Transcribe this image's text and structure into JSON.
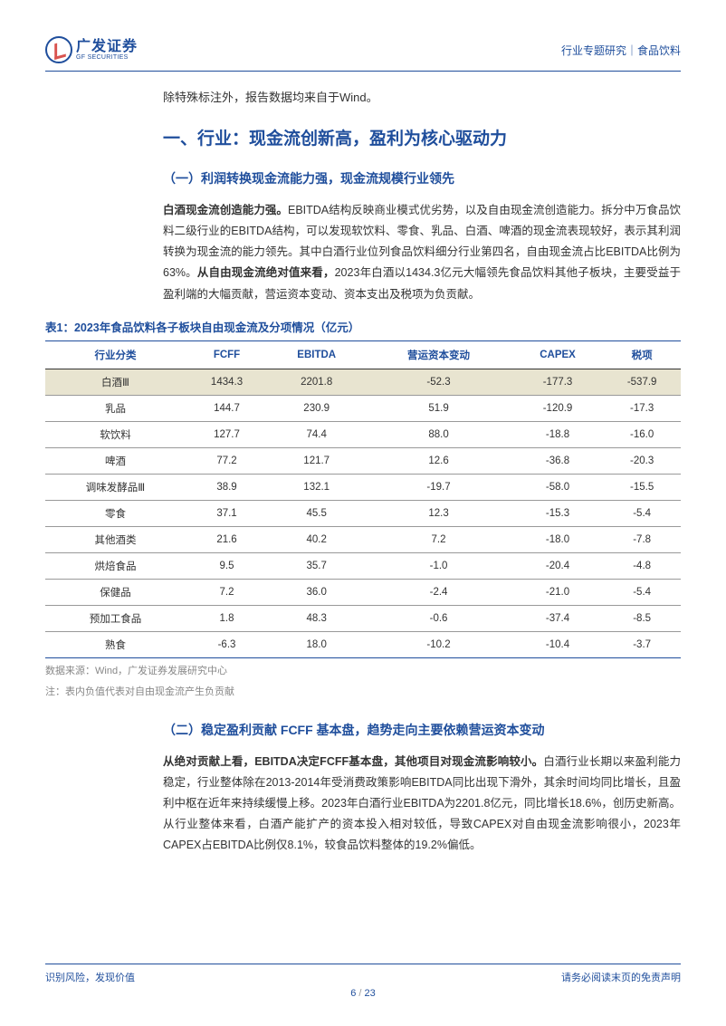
{
  "header": {
    "logo_cn": "广发证券",
    "logo_en": "GF SECURITIES",
    "right_text": "行业专题研究｜食品饮料"
  },
  "intro_note": "除特殊标注外，报告数据均来自于Wind。",
  "section1": {
    "title": "一、行业：现金流创新高，盈利为核心驱动力",
    "sub1_title": "（一）利润转换现金流能力强，现金流规模行业领先",
    "sub1_para": "白酒现金流创造能力强。EBITDA结构反映商业模式优劣势，以及自由现金流创造能力。拆分中万食品饮料二级行业的EBITDA结构，可以发现软饮料、零食、乳品、白酒、啤酒的现金流表现较好，表示其利润转换为现金流的能力领先。其中白酒行业位列食品饮料细分行业第四名，自由现金流占比EBITDA比例为63%。从自由现金流绝对值来看，2023年白酒以1434.3亿元大幅领先食品饮料其他子板块，主要受益于盈利端的大幅贡献，营运资本变动、资本支出及税项为负贡献。",
    "sub2_title": "（二）稳定盈利贡献 FCFF 基本盘，趋势走向主要依赖营运资本变动",
    "sub2_para": "从绝对贡献上看，EBITDA决定FCFF基本盘，其他项目对现金流影响较小。白酒行业长期以来盈利能力稳定，行业整体除在2013-2014年受消费政策影响EBITDA同比出现下滑外，其余时间均同比增长，且盈利中枢在近年来持续缓慢上移。2023年白酒行业EBITDA为2201.8亿元，同比增长18.6%，创历史新高。从行业整体来看，白酒产能扩产的资本投入相对较低，导致CAPEX对自由现金流影响很小，2023年CAPEX占EBITDA比例仅8.1%，较食品饮料整体的19.2%偏低。"
  },
  "table1": {
    "title": "表1：2023年食品饮料各子板块自由现金流及分项情况（亿元）",
    "columns": [
      "行业分类",
      "FCFF",
      "EBITDA",
      "营运资本变动",
      "CAPEX",
      "税项"
    ],
    "rows": [
      {
        "highlight": true,
        "cells": [
          "白酒Ⅲ",
          "1434.3",
          "2201.8",
          "-52.3",
          "-177.3",
          "-537.9"
        ],
        "colors": [
          "",
          "",
          "red",
          "",
          "green",
          "green"
        ]
      },
      {
        "highlight": false,
        "cells": [
          "乳品",
          "144.7",
          "230.9",
          "51.9",
          "-120.9",
          "-17.3"
        ],
        "colors": [
          "",
          "",
          "",
          "",
          "",
          ""
        ]
      },
      {
        "highlight": false,
        "cells": [
          "软饮料",
          "127.7",
          "74.4",
          "88.0",
          "-18.8",
          "-16.0"
        ],
        "colors": [
          "",
          "",
          "",
          "",
          "",
          ""
        ]
      },
      {
        "highlight": false,
        "cells": [
          "啤酒",
          "77.2",
          "121.7",
          "12.6",
          "-36.8",
          "-20.3"
        ],
        "colors": [
          "",
          "",
          "",
          "",
          "",
          ""
        ]
      },
      {
        "highlight": false,
        "cells": [
          "调味发酵品Ⅲ",
          "38.9",
          "132.1",
          "-19.7",
          "-58.0",
          "-15.5"
        ],
        "colors": [
          "",
          "",
          "",
          "",
          "",
          ""
        ]
      },
      {
        "highlight": false,
        "cells": [
          "零食",
          "37.1",
          "45.5",
          "12.3",
          "-15.3",
          "-5.4"
        ],
        "colors": [
          "",
          "",
          "",
          "",
          "",
          ""
        ]
      },
      {
        "highlight": false,
        "cells": [
          "其他酒类",
          "21.6",
          "40.2",
          "7.2",
          "-18.0",
          "-7.8"
        ],
        "colors": [
          "",
          "",
          "",
          "",
          "",
          ""
        ]
      },
      {
        "highlight": false,
        "cells": [
          "烘焙食品",
          "9.5",
          "35.7",
          "-1.0",
          "-20.4",
          "-4.8"
        ],
        "colors": [
          "",
          "",
          "",
          "",
          "",
          ""
        ]
      },
      {
        "highlight": false,
        "cells": [
          "保健品",
          "7.2",
          "36.0",
          "-2.4",
          "-21.0",
          "-5.4"
        ],
        "colors": [
          "",
          "",
          "",
          "",
          "",
          ""
        ]
      },
      {
        "highlight": false,
        "cells": [
          "预加工食品",
          "1.8",
          "48.3",
          "-0.6",
          "-37.4",
          "-8.5"
        ],
        "colors": [
          "",
          "",
          "",
          "",
          "",
          ""
        ]
      },
      {
        "highlight": false,
        "cells": [
          "熟食",
          "-6.3",
          "18.0",
          "-10.2",
          "-10.4",
          "-3.7"
        ],
        "colors": [
          "",
          "",
          "",
          "",
          "",
          ""
        ]
      }
    ],
    "source1": "数据来源：Wind，广发证券发展研究中心",
    "source2": "注：表内负值代表对自由现金流产生负贡献"
  },
  "footer": {
    "left": "识别风险，发现价值",
    "right": "请务必阅读末页的免责声明",
    "page_current": "6",
    "page_total": "23"
  },
  "colors": {
    "brand_blue": "#1f4e9c",
    "accent_red": "#c0392b",
    "accent_green": "#27ae60",
    "highlight_bg": "#e8e4d0",
    "text": "#333333",
    "muted": "#888888"
  }
}
